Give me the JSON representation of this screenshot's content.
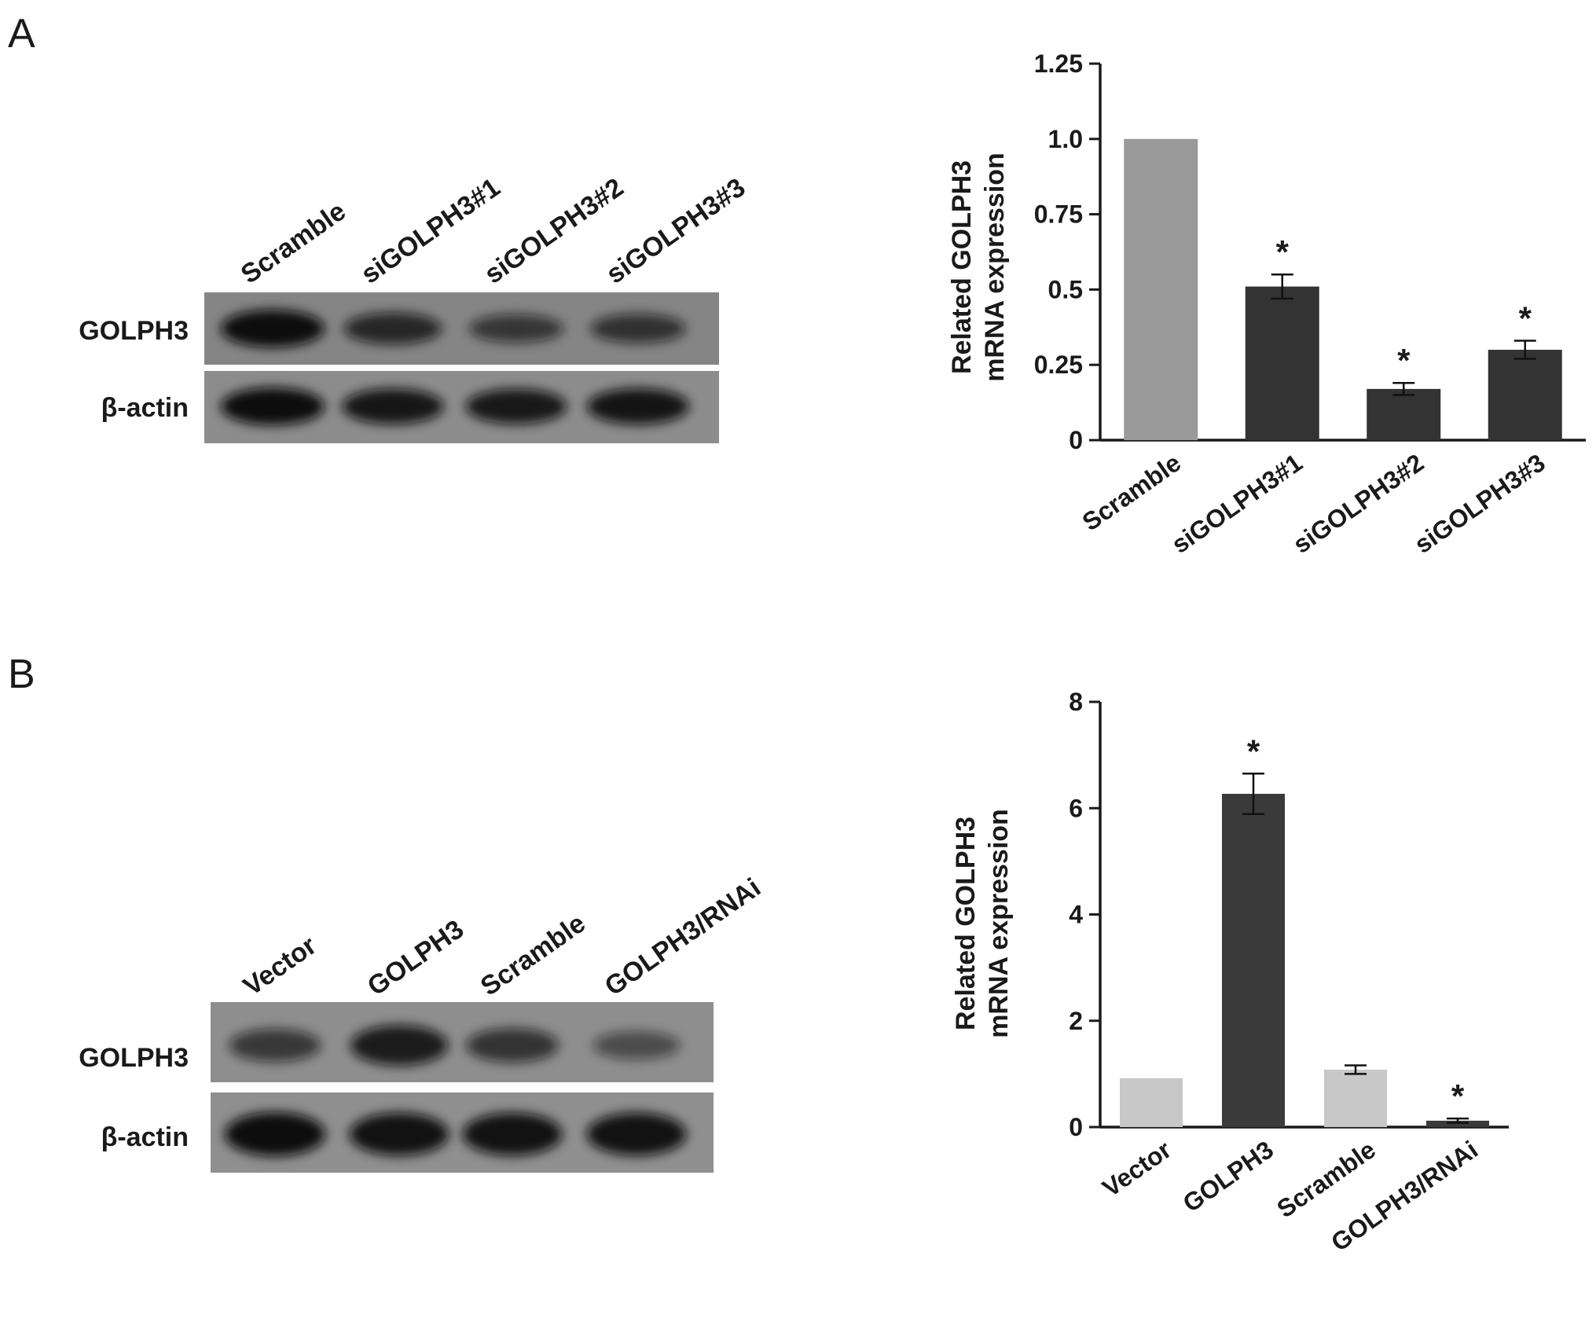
{
  "panels": [
    {
      "label": "A",
      "blot": {
        "lanes": [
          "Scramble",
          "siGOLPH3#1",
          "siGOLPH3#2",
          "siGOLPH3#3"
        ],
        "rows": [
          "GOLPH3",
          "β-actin"
        ],
        "band_intensity": {
          "GOLPH3": [
            1.0,
            0.72,
            0.55,
            0.6
          ],
          "β-actin": [
            1.0,
            0.9,
            0.88,
            0.92
          ]
        }
      },
      "chart_data": {
        "type": "bar",
        "categories": [
          "Scramble",
          "siGOLPH3#1",
          "siGOLPH3#2",
          "siGOLPH3#3"
        ],
        "values": [
          1.0,
          0.51,
          0.17,
          0.3
        ],
        "errors": [
          0,
          0.04,
          0.02,
          0.03
        ],
        "significance": [
          "",
          "*",
          "*",
          "*"
        ],
        "bar_colors": [
          "#9a9a9a",
          "#333333",
          "#333333",
          "#333333"
        ],
        "ylabel": [
          "Related GOLPH3",
          "mRNA expression"
        ],
        "ylim": [
          0,
          1.25
        ],
        "yticks": [
          0,
          0.25,
          0.5,
          0.75,
          1.0,
          1.25
        ],
        "ytick_labels": [
          "0",
          "0.25",
          "0.5",
          "0.75",
          "1.0",
          "1.25"
        ],
        "grid": false
      }
    },
    {
      "label": "B",
      "blot": {
        "lanes": [
          "Vector",
          "GOLPH3",
          "Scramble",
          "GOLPH3/RNAi"
        ],
        "rows": [
          "GOLPH3",
          "β-actin"
        ],
        "band_intensity": {
          "GOLPH3": [
            0.55,
            0.85,
            0.6,
            0.35
          ],
          "β-actin": [
            1.0,
            0.95,
            0.95,
            0.95
          ]
        }
      },
      "chart_data": {
        "type": "bar",
        "categories": [
          "Vector",
          "GOLPH3",
          "Scramble",
          "GOLPH3/RNAi"
        ],
        "values": [
          0.92,
          6.27,
          1.08,
          0.12
        ],
        "errors": [
          0,
          0.38,
          0.08,
          0.04
        ],
        "significance": [
          "",
          "*",
          "",
          "*"
        ],
        "bar_colors": [
          "#c8c8c8",
          "#3a3a3a",
          "#c8c8c8",
          "#3a3a3a"
        ],
        "ylabel": [
          "Related GOLPH3",
          "mRNA expression"
        ],
        "ylim": [
          0,
          8
        ],
        "yticks": [
          0,
          2,
          4,
          6,
          8
        ],
        "ytick_labels": [
          "0",
          "2",
          "4",
          "6",
          "8"
        ],
        "grid": false
      }
    }
  ]
}
